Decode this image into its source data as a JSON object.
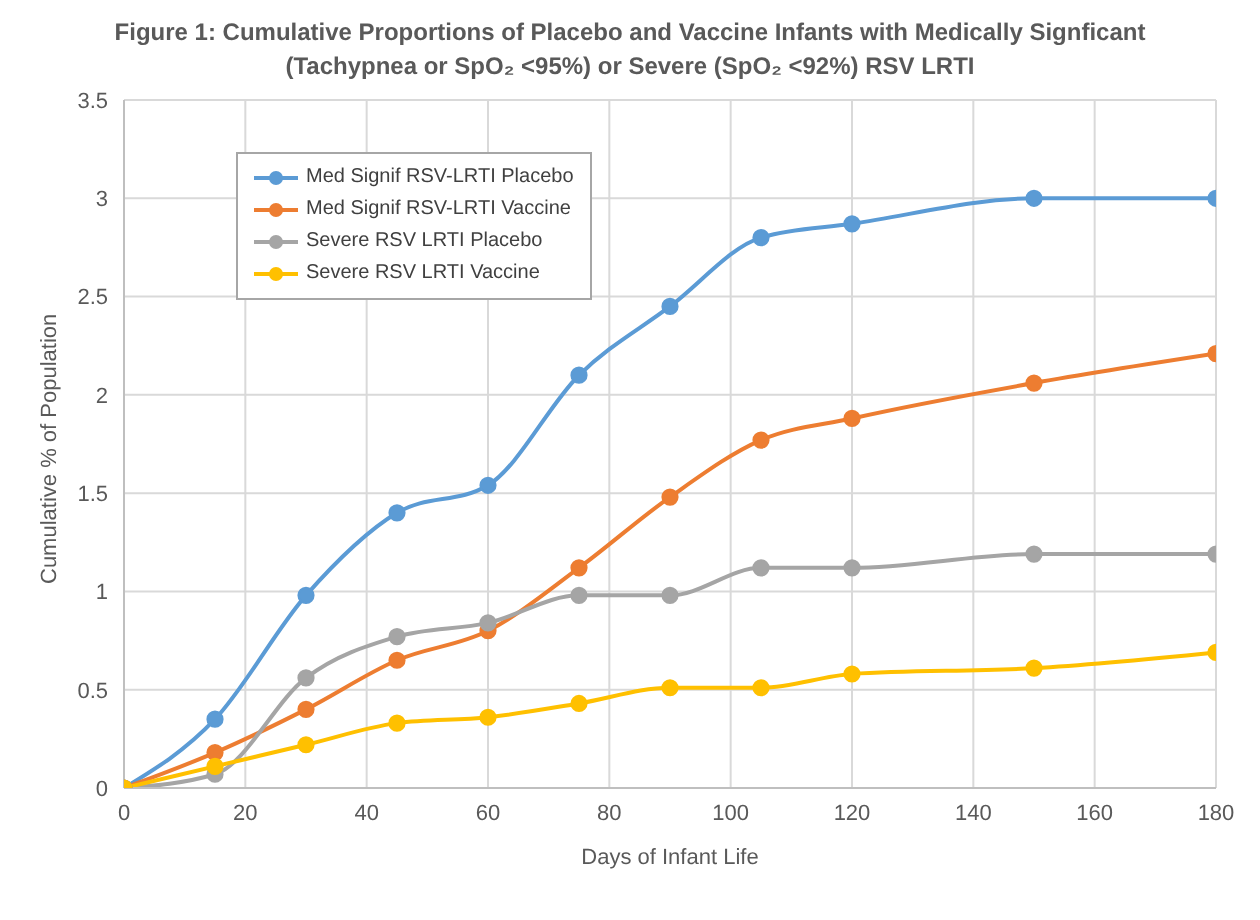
{
  "chart_data": {
    "type": "line",
    "title": "Figure 1:  Cumulative Proportions of Placebo and Vaccine Infants with Medically Signficant (Tachypnea or SpO₂ <95%) or Severe (SpO₂ <92%) RSV LRTI",
    "xlabel": "Days of Infant Life",
    "ylabel": "Cumulative % of Population",
    "x": [
      0,
      15,
      30,
      45,
      60,
      75,
      90,
      105,
      120,
      150,
      180
    ],
    "series": [
      {
        "name": "Med Signif RSV-LRTI Placebo",
        "color": "#5b9bd5",
        "values": [
          0,
          0.35,
          0.98,
          1.4,
          1.54,
          2.1,
          2.45,
          2.8,
          2.87,
          3.0,
          3.0
        ]
      },
      {
        "name": "Med Signif RSV-LRTI Vaccine",
        "color": "#ed7d31",
        "values": [
          0,
          0.18,
          0.4,
          0.65,
          0.8,
          1.12,
          1.48,
          1.77,
          1.88,
          2.06,
          2.21
        ]
      },
      {
        "name": "Severe RSV LRTI Placebo",
        "color": "#a5a5a5",
        "values": [
          0,
          0.07,
          0.56,
          0.77,
          0.84,
          0.98,
          0.98,
          1.12,
          1.12,
          1.19,
          1.19
        ]
      },
      {
        "name": "Severe RSV LRTI Vaccine",
        "color": "#ffc000",
        "values": [
          0,
          0.11,
          0.22,
          0.33,
          0.36,
          0.43,
          0.51,
          0.51,
          0.58,
          0.61,
          0.69
        ]
      }
    ],
    "xlim": [
      0,
      180
    ],
    "xticks": [
      0,
      20,
      40,
      60,
      80,
      100,
      120,
      140,
      160,
      180
    ],
    "ylim": [
      0,
      3.5
    ],
    "yticks": [
      0,
      0.5,
      1,
      1.5,
      2,
      2.5,
      3,
      3.5
    ],
    "grid": true,
    "legend": "top left",
    "marker": "circle",
    "line_style": "solid"
  }
}
